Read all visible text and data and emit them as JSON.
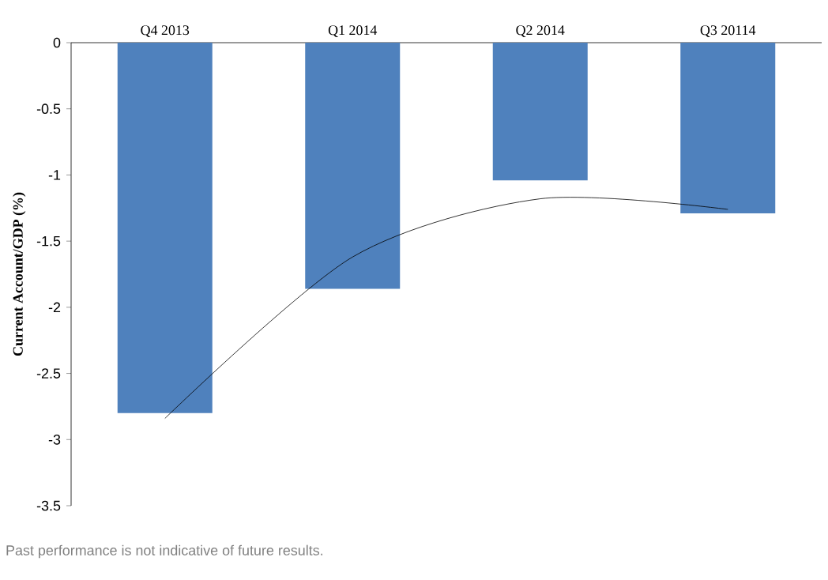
{
  "chart_data": {
    "type": "bar",
    "ylabel": "Current Account/GDP  (%)",
    "categories": [
      "Q4 2013",
      "Q1 2014",
      "Q2 2014",
      "Q3 20114"
    ],
    "series": [
      {
        "color": "#4f81bd",
        "values": [
          -2.8,
          -1.86,
          -1.04,
          -1.29
        ]
      },
      {
        "type": "line",
        "color": "#000000",
        "values": [
          -2.84,
          -1.62,
          -1.18,
          -1.26
        ]
      }
    ],
    "ylim": [
      -3.5,
      0
    ],
    "yticks": [
      0,
      -0.5,
      -1,
      -1.5,
      -2,
      -2.5,
      -3,
      -3.5
    ],
    "annotations": [
      "Past performance is not indicative of future results."
    ]
  }
}
